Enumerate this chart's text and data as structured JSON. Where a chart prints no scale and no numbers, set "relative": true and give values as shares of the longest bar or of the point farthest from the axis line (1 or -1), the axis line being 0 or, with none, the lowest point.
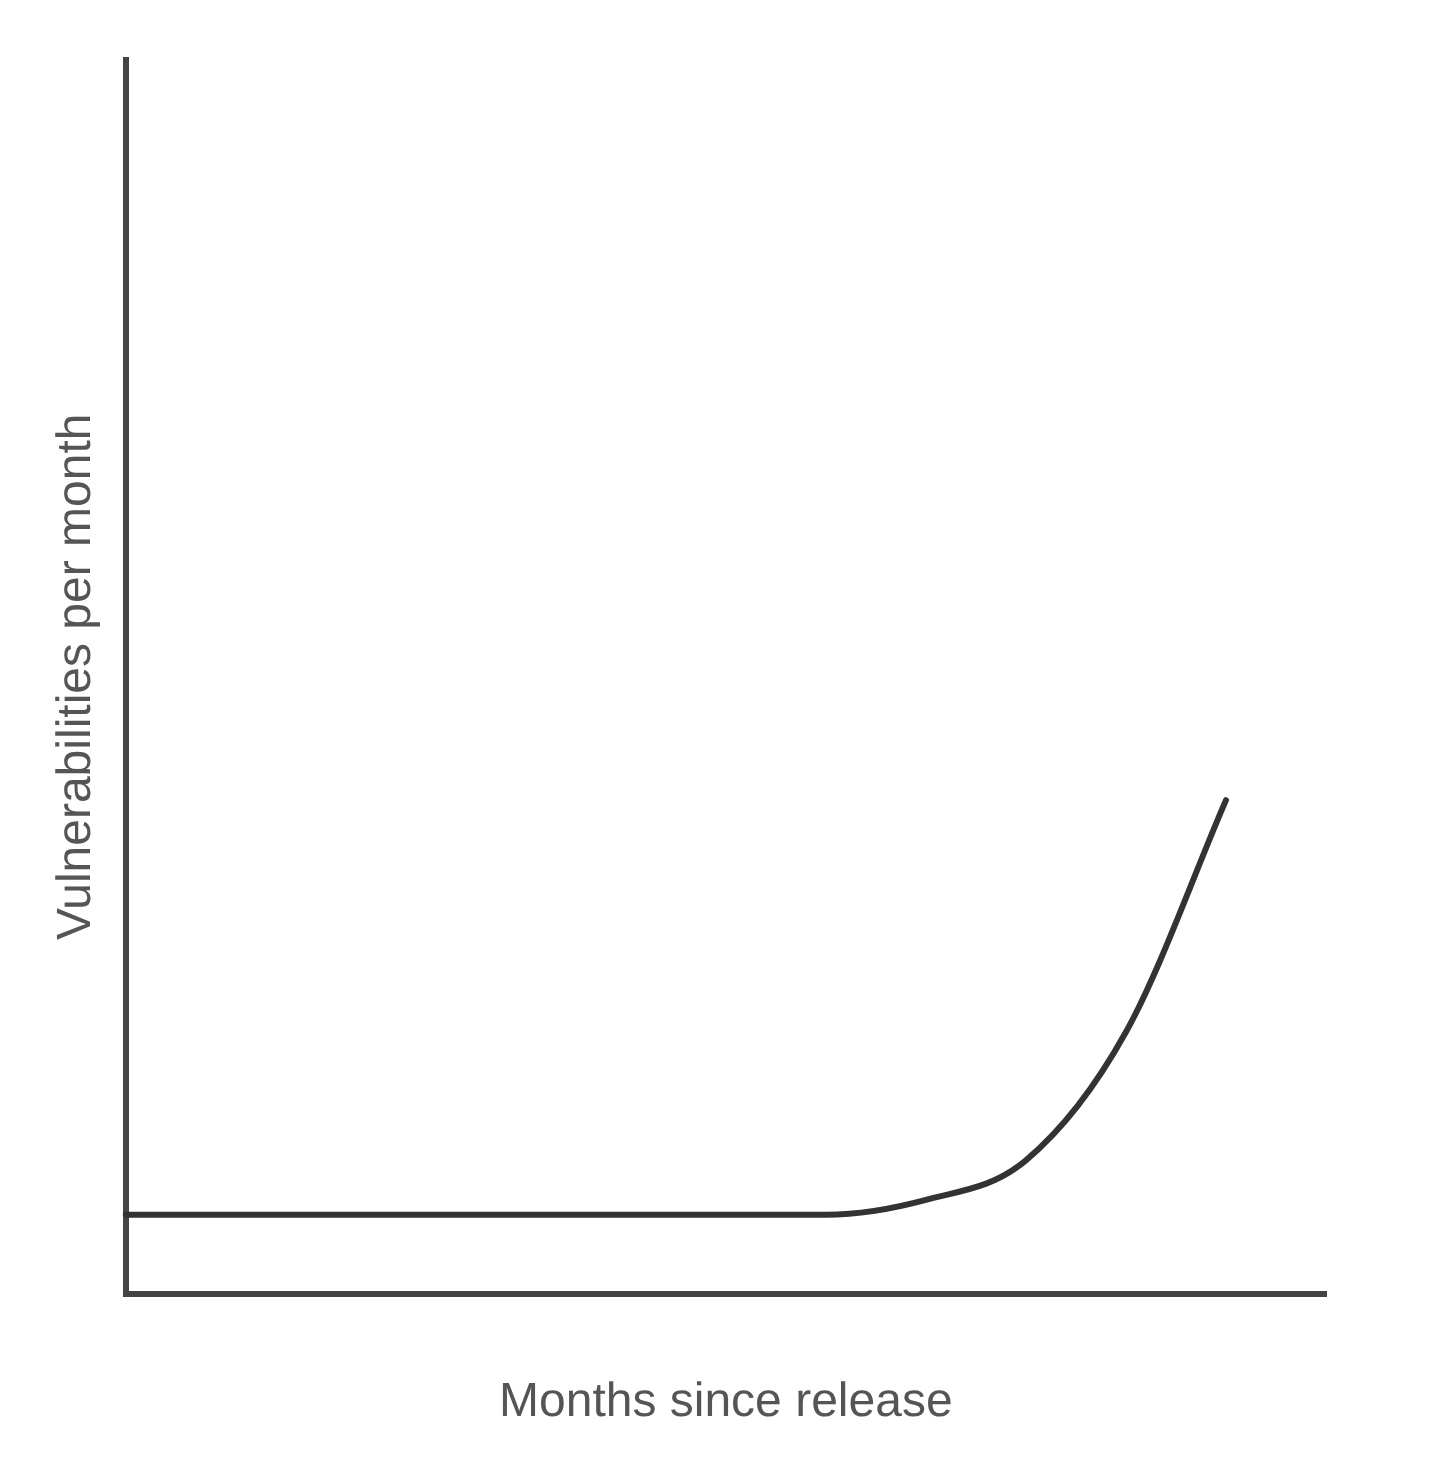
{
  "chart_data": {
    "type": "line",
    "relative": true,
    "xlabel": "Months since release",
    "ylabel": "Vulnerabilities per month",
    "categories": [
      null,
      null,
      null,
      null,
      null,
      null,
      null,
      null,
      null,
      null,
      null,
      null,
      null
    ],
    "series": [
      {
        "color": "#333333",
        "values": [
          0.16,
          0.16,
          0.16,
          0.16,
          0.16,
          0.16,
          0.16,
          0.16,
          0.19,
          0.27,
          0.53,
          1,
          null
        ]
      }
    ],
    "grid": false,
    "legend": false,
    "marker": "none",
    "line_style": "solid"
  }
}
